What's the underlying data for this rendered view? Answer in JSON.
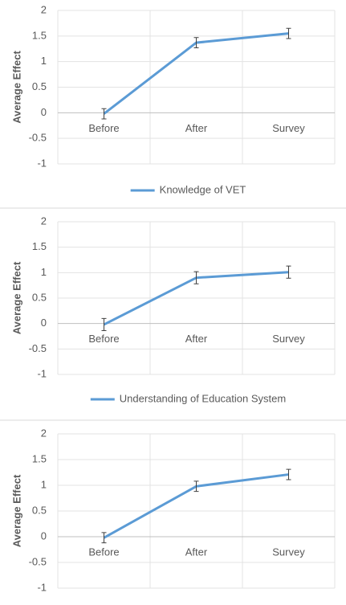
{
  "chart_data": [
    {
      "type": "line",
      "y_label": "Average Effect",
      "categories": [
        "Before",
        "After",
        "Survey"
      ],
      "series": [
        {
          "name": "Knowledge of VET",
          "color": "#5b9bd5",
          "values": [
            -0.02,
            1.37,
            1.55
          ],
          "errors": [
            0.1,
            0.1,
            0.1
          ]
        }
      ],
      "ylim": [
        -1,
        2
      ],
      "yticks": [
        2,
        1.5,
        1,
        0.5,
        0,
        -0.5,
        -1
      ],
      "grid": true
    },
    {
      "type": "line",
      "y_label": "Average Effect",
      "categories": [
        "Before",
        "After",
        "Survey"
      ],
      "series": [
        {
          "name": "Understanding of Education System",
          "color": "#5b9bd5",
          "values": [
            -0.02,
            0.9,
            1.01
          ],
          "errors": [
            0.12,
            0.12,
            0.12
          ]
        }
      ],
      "ylim": [
        -1,
        2
      ],
      "yticks": [
        2,
        1.5,
        1,
        0.5,
        0,
        -0.5,
        -1
      ],
      "grid": true
    },
    {
      "type": "line",
      "y_label": "Average Effect",
      "categories": [
        "Before",
        "After",
        "Survey"
      ],
      "series": [
        {
          "color": "#5b9bd5",
          "values": [
            -0.02,
            0.98,
            1.21
          ],
          "errors": [
            0.1,
            0.1,
            0.1
          ]
        }
      ],
      "ylim": [
        -1,
        2
      ],
      "yticks": [
        2,
        1.5,
        1,
        0.5,
        0,
        -0.5,
        -1
      ],
      "grid": true
    }
  ]
}
